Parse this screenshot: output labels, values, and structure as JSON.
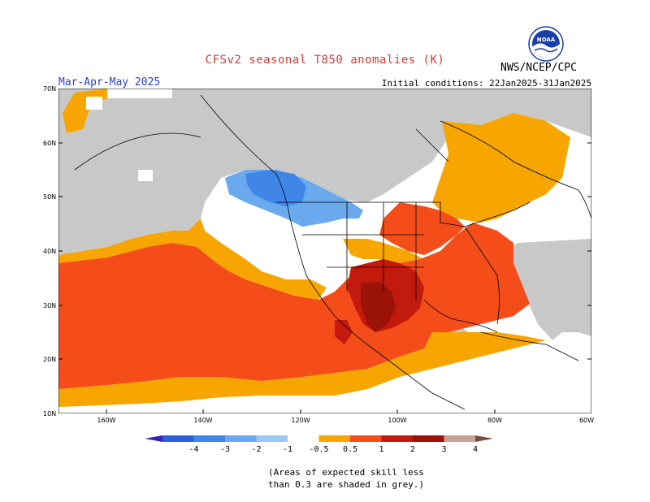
{
  "title": "CFSv2 seasonal T850 anomalies (K)",
  "period": "Mar-Apr-May 2025",
  "initial_conditions": "Initial conditions: 22Jan2025-31Jan2025",
  "agency": "NWS/NCEP/CPC",
  "logo_text": "NOAA",
  "lat_labels": [
    "70N",
    "60N",
    "50N",
    "40N",
    "30N",
    "20N",
    "10N"
  ],
  "lon_labels": [
    "160W",
    "140W",
    "120W",
    "100W",
    "80W",
    "60W"
  ],
  "colorbar": {
    "labels": [
      "-4",
      "-3",
      "-2",
      "-1",
      "-0.5",
      "0.5",
      "1",
      "2",
      "3",
      "4"
    ],
    "colors": [
      "#3a1fbf",
      "#2d5fd6",
      "#3f86e8",
      "#6aa9ee",
      "#9cc9f4",
      "#ffffff",
      "#f7a500",
      "#f54d1a",
      "#c21a0c",
      "#9b1207",
      "#c8a090",
      "#7a4a3c"
    ]
  },
  "skill_note": [
    "(Areas of expected skill less",
    "than 0.3 are shaded in grey.)"
  ],
  "colors": {
    "grey": "#c8c8c8",
    "orange": "#f7a500",
    "red_orange": "#f54d1a",
    "red": "#c21a0c",
    "dark_red": "#9b1207",
    "light_blue": "#6aa9ee",
    "blue": "#3f86e8",
    "title_red": "#d83a3a",
    "period_blue": "#2b3fd1"
  }
}
